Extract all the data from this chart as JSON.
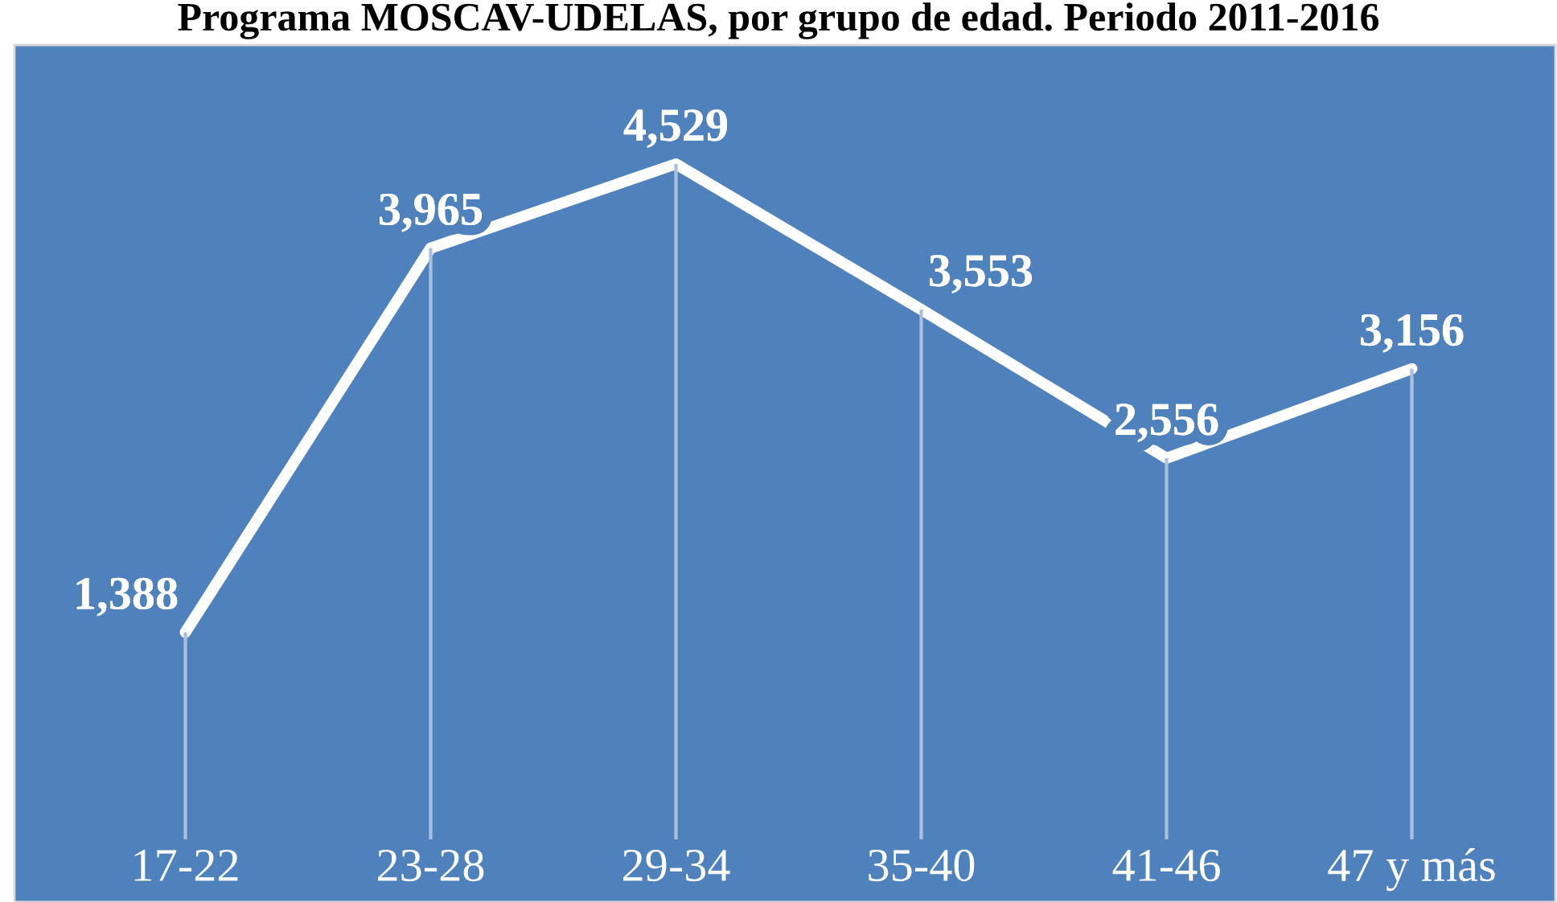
{
  "chart_data": {
    "type": "line",
    "title": "Programa MOSCAV-UDELAS, por grupo de edad. Periodo 2011-2016",
    "categories": [
      "17-22",
      "23-28",
      "29-34",
      "35-40",
      "41-46",
      "47 y más"
    ],
    "series": [
      {
        "type": "bar",
        "color": "#a9c0de",
        "values": [
          1388,
          3965,
          4529,
          3553,
          2556,
          3156
        ]
      },
      {
        "color": "#ffffff",
        "values": [
          1388,
          3965,
          4529,
          3553,
          2556,
          3156
        ],
        "value_labels": [
          "1,388",
          "3,965",
          "4,529",
          "3,553",
          "2,556",
          "3,156"
        ]
      }
    ],
    "line_style": "solid"
  }
}
